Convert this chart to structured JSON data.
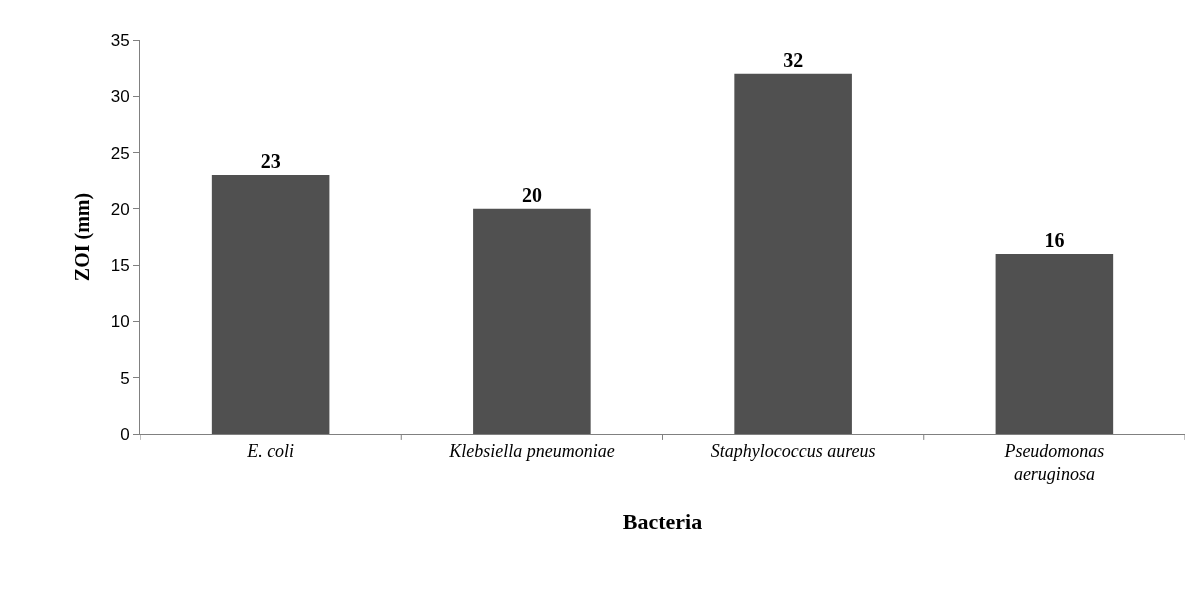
{
  "chart_data": {
    "type": "bar",
    "xlabel": "Bacteria",
    "ylabel": "ZOI (mm)",
    "categories": [
      "E. coli",
      "Klebsiella pneumoniae",
      "Staphylococcus aureus",
      "Pseudomonas aeruginosa"
    ],
    "values": [
      23,
      20,
      32,
      16
    ],
    "color": "#505050",
    "data_labels": true,
    "ylim": [
      0,
      35
    ],
    "yticks": [
      0,
      5,
      10,
      15,
      20,
      25,
      30,
      35
    ]
  }
}
